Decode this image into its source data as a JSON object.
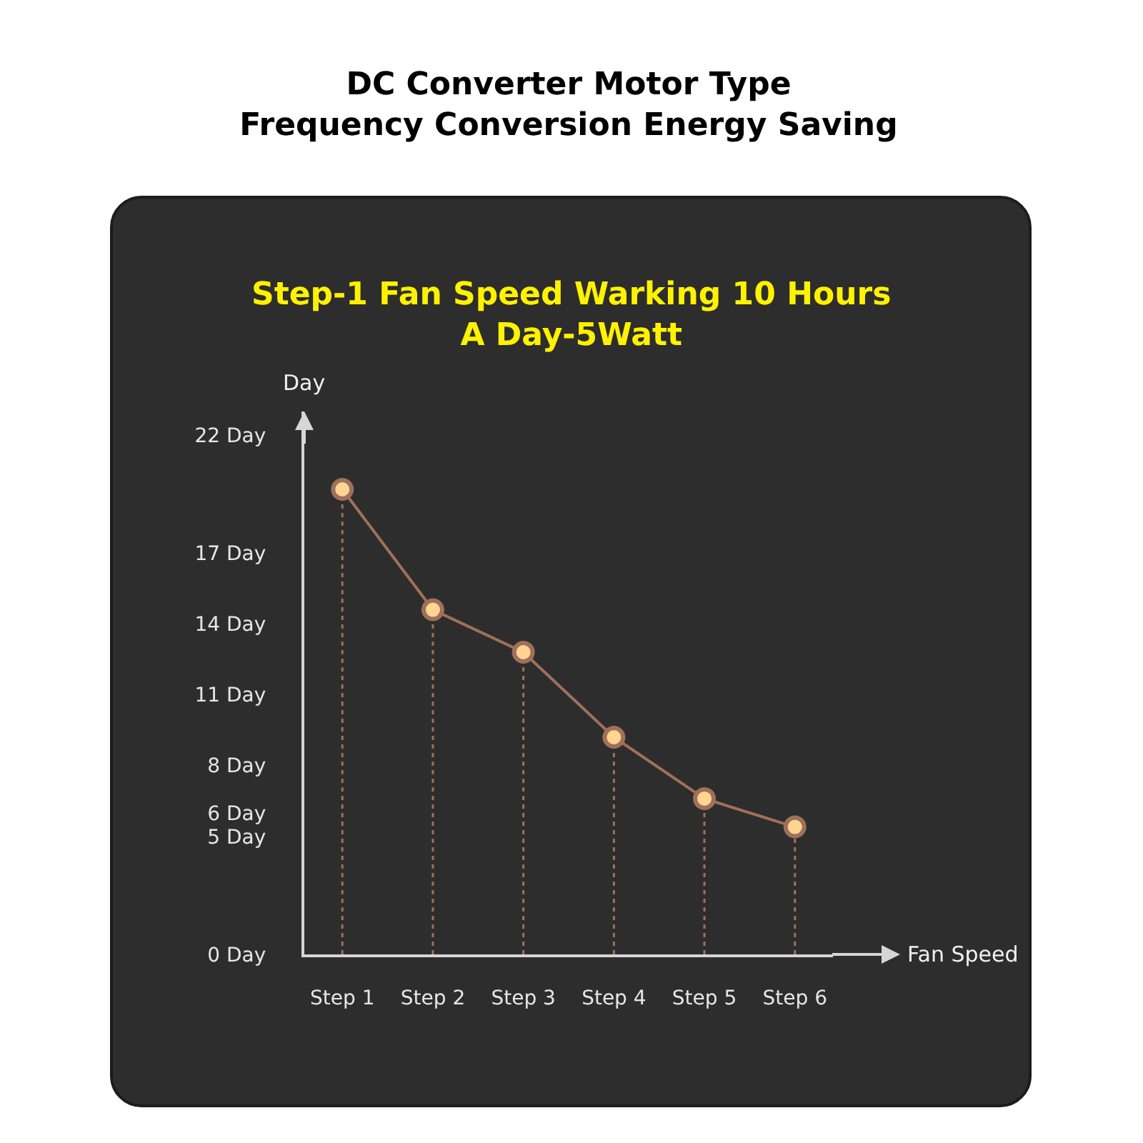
{
  "chart_data": {
    "type": "line",
    "title": "DC Converter Motor Type\nFrequency Conversion Energy Saving",
    "subtitle": "Step-1 Fan Speed Warking 10 Hours\nA Day-5Watt",
    "xlabel": "Fan Speed",
    "ylabel": "Day",
    "categories": [
      "Step 1",
      "Step 2",
      "Step 3",
      "Step 4",
      "Step 5",
      "Step 6"
    ],
    "series": [
      {
        "color": "#a0705a",
        "marker": "none",
        "values": [
          19.7,
          14.6,
          12.8,
          9.2,
          6.6,
          5.4
        ]
      },
      {
        "type": "lollipop",
        "color": "#a0705a",
        "colors": [
          "#ffd591",
          "#ffd591",
          "#ffd591",
          "#ffd591",
          "#ffd591",
          "#ffd591"
        ],
        "line_style": "dotted",
        "values": [
          19.7,
          14.6,
          12.8,
          9.2,
          6.6,
          5.4
        ]
      }
    ],
    "ylim": [
      0,
      23
    ],
    "yticks": [
      {
        "value": 0,
        "label": "0 Day"
      },
      {
        "value": 5,
        "label": "5 Day"
      },
      {
        "value": 6,
        "label": "6 Day"
      },
      {
        "value": 8,
        "label": "8 Day"
      },
      {
        "value": 11,
        "label": "11 Day"
      },
      {
        "value": 14,
        "label": "14 Day"
      },
      {
        "value": 17,
        "label": "17 Day"
      },
      {
        "value": 22,
        "label": "22 Day"
      }
    ],
    "marker": "circle",
    "line_style": "solid"
  }
}
